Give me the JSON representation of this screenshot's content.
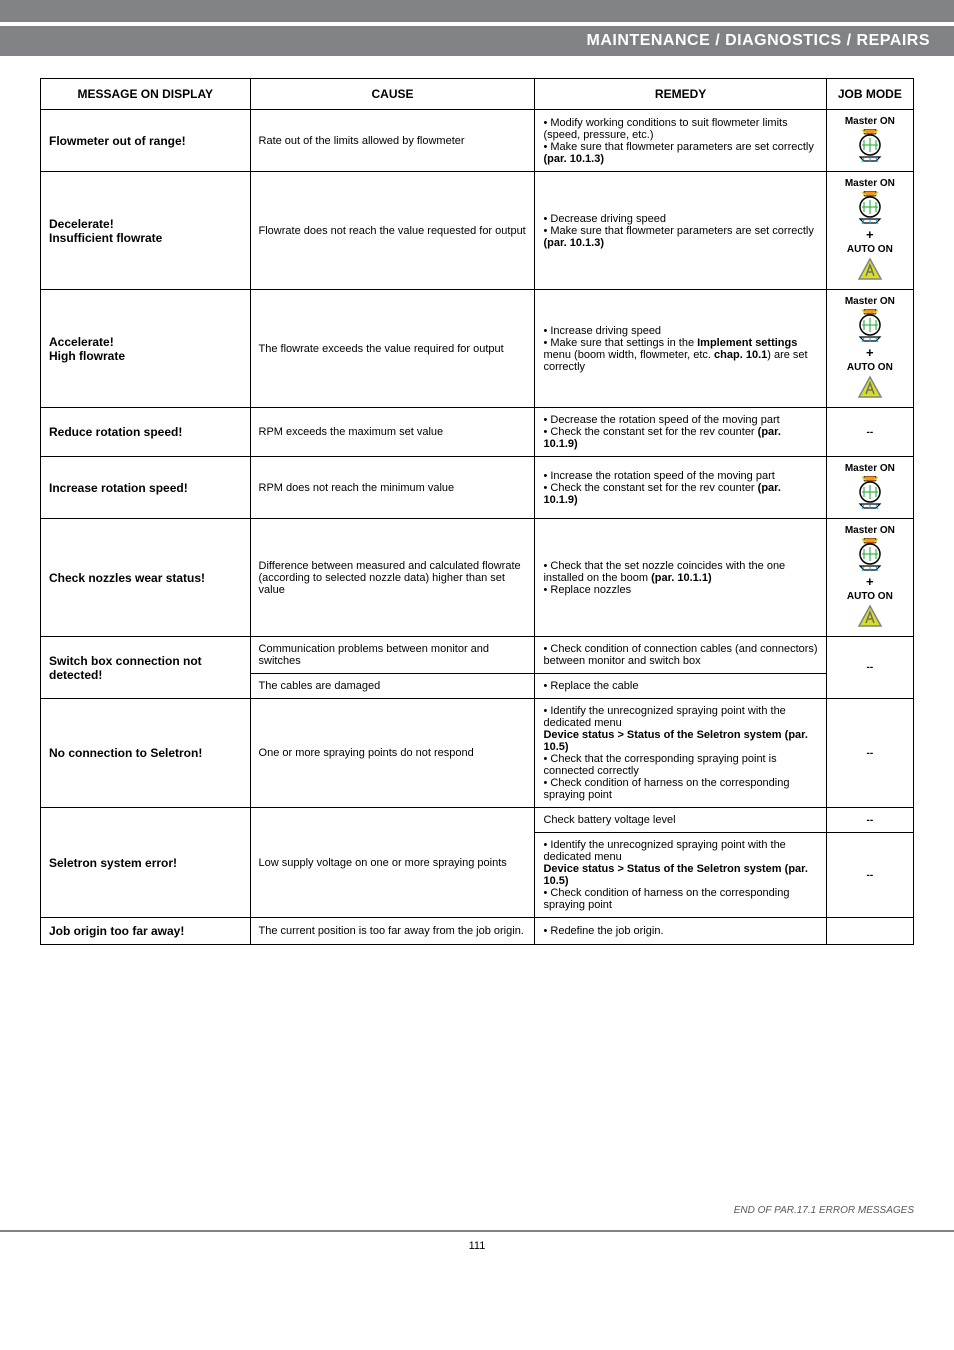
{
  "header": "MAINTENANCE / DIAGNOSTICS / REPAIRS",
  "table": {
    "headers": [
      "MESSAGE ON DISPLAY",
      "CAUSE",
      "REMEDY",
      "JOB MODE"
    ],
    "rows": [
      {
        "msg": "Flowmeter out of range!",
        "cause": "Rate out of the limits allowed by flowmeter",
        "remedy": "• Modify working conditions to suit flowmeter limits (speed, pressure, etc.)\n• Make sure that flowmeter parameters are set correctly (par. 10.1.3)",
        "mode": {
          "master": true,
          "auto": false,
          "dash": false
        }
      },
      {
        "msg": "Decelerate!\nInsufficient flowrate",
        "cause": "Flowrate does not reach the value requested for output",
        "remedy": "• Decrease driving speed\n• Make sure that flowmeter parameters are set correctly (par. 10.1.3)",
        "mode": {
          "master": true,
          "auto": true,
          "dash": false
        }
      },
      {
        "msg": "Accelerate!\nHigh flowrate",
        "cause": "The flowrate exceeds the value required for output",
        "remedy": "• Increase driving speed\n• Make sure that settings in the Implement settings menu (boom width, flowmeter, etc. chap. 10.1) are set correctly",
        "mode": {
          "master": true,
          "auto": true,
          "dash": false
        }
      },
      {
        "msg": "Reduce rotation speed!",
        "cause": "RPM exceeds the maximum set value",
        "remedy": "• Decrease the rotation speed of the moving part\n• Check the constant set for the rev counter (par. 10.1.9)",
        "mode": {
          "master": false,
          "auto": false,
          "dash": true
        }
      },
      {
        "msg": "Increase rotation speed!",
        "cause": "RPM does not reach the minimum value",
        "remedy": "• Increase the rotation speed of the moving part\n• Check the constant set for the rev counter (par. 10.1.9)",
        "mode": {
          "master": true,
          "auto": false,
          "dash": false
        }
      },
      {
        "msg": "Check nozzles wear status!",
        "cause": "Difference between measured and calculated flowrate (according to selected nozzle data) higher than set value",
        "remedy": "• Check that the set nozzle coincides with the one installed on the boom (par. 10.1.1)\n• Replace nozzles",
        "mode": {
          "master": true,
          "auto": true,
          "dash": false
        }
      }
    ],
    "switch_row": {
      "msg": "Switch box connection not detected!",
      "cause1": "Communication problems between monitor and switches",
      "remedy1": "• Check condition of connection cables (and connectors) between monitor and switch box",
      "cause2": "The cables are damaged",
      "remedy2": "• Replace the cable",
      "mode": {
        "dash": true
      }
    },
    "noconn_row": {
      "msg": "No connection to Seletron!",
      "cause": "One or more spraying points do not respond",
      "remedy": "• Identify the unrecognized spraying point with the dedicated menu\nDevice status > Status of the Seletron system (par. 10.5)\n• Check that the corresponding spraying point is connected correctly\n• Check condition of harness on the corresponding spraying point",
      "mode": {
        "dash": true
      }
    },
    "seletron_err": {
      "msg": "Seletron system error!",
      "cause": "Low supply voltage on one or more spraying points",
      "remedy0": "Check battery voltage level",
      "remedy": "• Identify the unrecognized spraying point with the dedicated menu\nDevice status > Status of the Seletron system (par. 10.5)\n• Check condition of harness on the corresponding spraying point",
      "mode0": {
        "dash": true
      },
      "mode": {
        "dash": true
      }
    },
    "job_origin": {
      "msg": "Job origin too far away!",
      "cause": "The current position is too far away from the job origin.",
      "remedy": "• Redefine the job origin.",
      "mode": {
        "blank": true
      }
    }
  },
  "labels": {
    "master_on": "Master ON",
    "auto_on": "AUTO ON",
    "plus": "+",
    "dash": "--"
  },
  "footer": "END OF PAR.17.1 ERROR MESSAGES",
  "page": "111"
}
